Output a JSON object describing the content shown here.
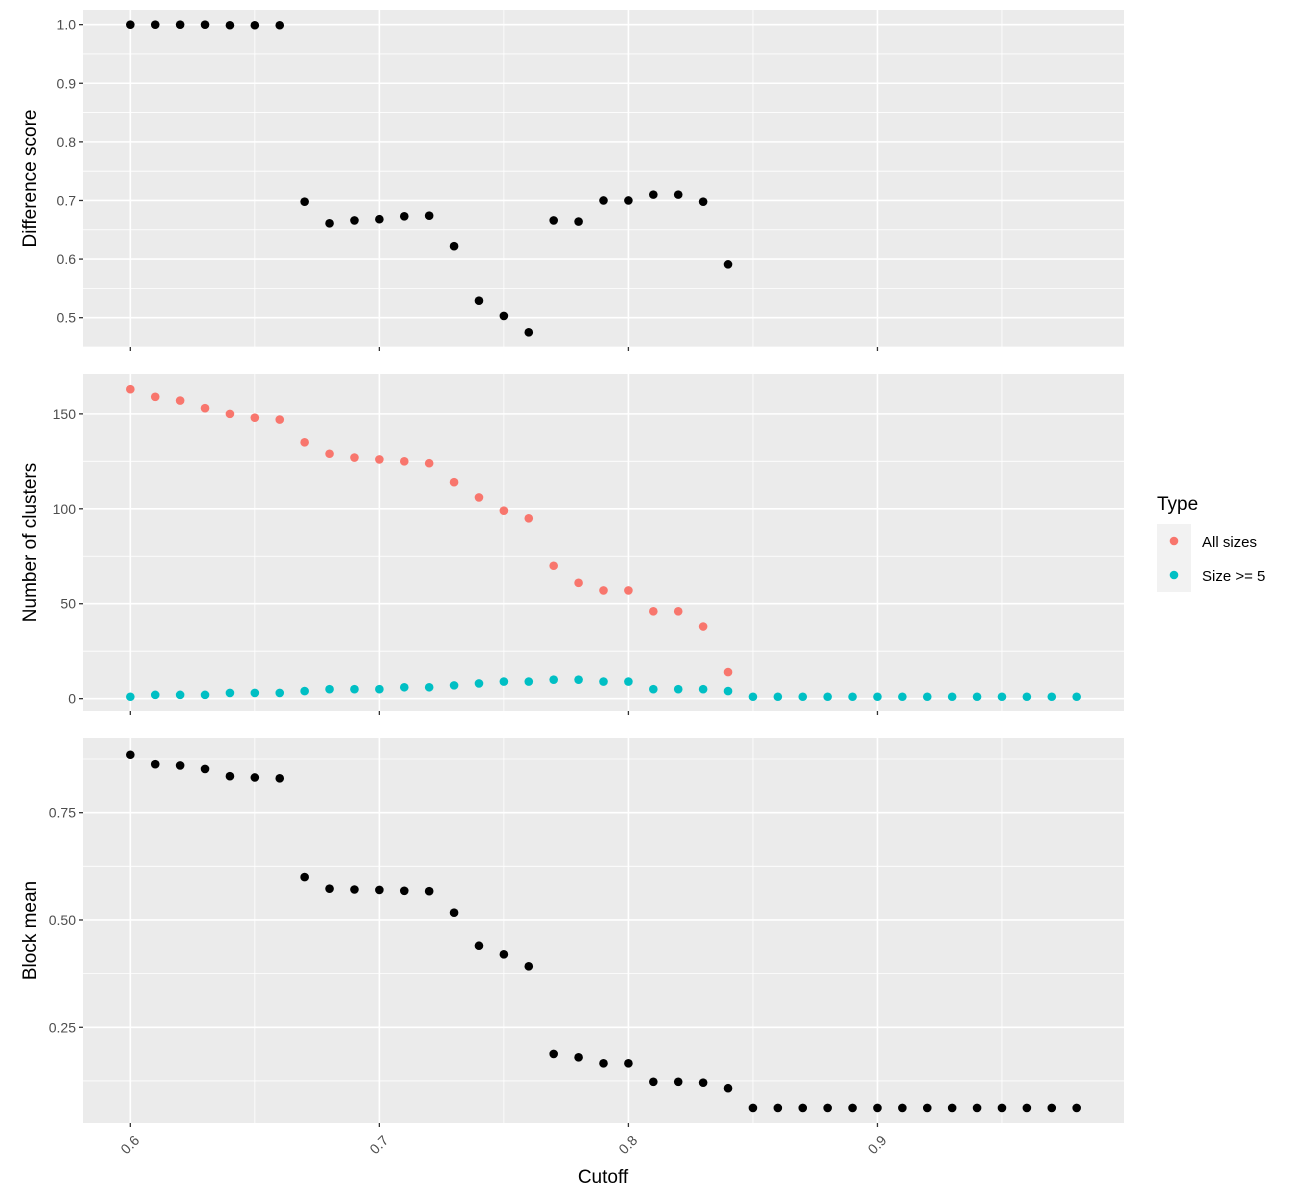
{
  "x_title": "Cutoff",
  "legend": {
    "title": "Type",
    "items": [
      {
        "label": "All sizes",
        "color": "#F8766D"
      },
      {
        "label": "Size >= 5",
        "color": "#00BFC4"
      }
    ]
  },
  "chart_data": [
    {
      "type": "scatter",
      "ylabel": "Difference score",
      "xlim": [
        0.581,
        0.999
      ],
      "ylim": [
        0.45,
        1.025
      ],
      "x_ticks": [
        0.6,
        0.7,
        0.8,
        0.9
      ],
      "x_tick_labels": [
        "0.6",
        "0.7",
        "0.8",
        "0.9"
      ],
      "y_ticks": [
        0.5,
        0.6,
        0.7,
        0.8,
        0.9,
        1.0
      ],
      "y_tick_labels": [
        "0.5",
        "0.6",
        "0.7",
        "0.8",
        "0.9",
        "1.0"
      ],
      "grid": true,
      "series": [
        {
          "color": "#000000",
          "x": [
            0.6,
            0.61,
            0.62,
            0.63,
            0.64,
            0.65,
            0.66,
            0.67,
            0.68,
            0.69,
            0.7,
            0.71,
            0.72,
            0.73,
            0.74,
            0.75,
            0.76,
            0.77,
            0.78,
            0.79,
            0.8,
            0.81,
            0.82,
            0.83,
            0.84
          ],
          "y": [
            1.0,
            1.0,
            1.0,
            1.0,
            0.999,
            0.999,
            0.999,
            0.698,
            0.661,
            0.666,
            0.668,
            0.673,
            0.674,
            0.622,
            0.529,
            0.503,
            0.475,
            0.666,
            0.664,
            0.7,
            0.7,
            0.71,
            0.71,
            0.698,
            0.591
          ]
        }
      ]
    },
    {
      "type": "scatter",
      "ylabel": "Number of clusters",
      "xlim": [
        0.581,
        0.999
      ],
      "ylim": [
        -6.5,
        171
      ],
      "x_ticks": [
        0.6,
        0.7,
        0.8,
        0.9
      ],
      "x_tick_labels": [
        "0.6",
        "0.7",
        "0.8",
        "0.9"
      ],
      "y_ticks": [
        0,
        50,
        100,
        150
      ],
      "y_tick_labels": [
        "0",
        "50",
        "100",
        "150"
      ],
      "grid": true,
      "legend_position": "right",
      "series": [
        {
          "name": "All sizes",
          "color": "#F8766D",
          "x": [
            0.6,
            0.61,
            0.62,
            0.63,
            0.64,
            0.65,
            0.66,
            0.67,
            0.68,
            0.69,
            0.7,
            0.71,
            0.72,
            0.73,
            0.74,
            0.75,
            0.76,
            0.77,
            0.78,
            0.79,
            0.8,
            0.81,
            0.82,
            0.83,
            0.84
          ],
          "y": [
            163,
            159,
            157,
            153,
            150,
            148,
            147,
            135,
            129,
            127,
            126,
            125,
            124,
            114,
            106,
            99,
            95,
            70,
            61,
            57,
            57,
            46,
            46,
            38,
            14
          ]
        },
        {
          "name": "Size >= 5",
          "color": "#00BFC4",
          "x": [
            0.6,
            0.61,
            0.62,
            0.63,
            0.64,
            0.65,
            0.66,
            0.67,
            0.68,
            0.69,
            0.7,
            0.71,
            0.72,
            0.73,
            0.74,
            0.75,
            0.76,
            0.77,
            0.78,
            0.79,
            0.8,
            0.81,
            0.82,
            0.83,
            0.84,
            0.85,
            0.86,
            0.87,
            0.88,
            0.89,
            0.9,
            0.91,
            0.92,
            0.93,
            0.94,
            0.95,
            0.96,
            0.97,
            0.98
          ],
          "y": [
            1,
            2,
            2,
            2,
            3,
            3,
            3,
            4,
            5,
            5,
            5,
            6,
            6,
            7,
            8,
            9,
            9,
            10,
            10,
            9,
            9,
            5,
            5,
            5,
            4,
            1,
            1,
            1,
            1,
            1,
            1,
            1,
            1,
            1,
            1,
            1,
            1,
            1,
            1
          ]
        }
      ]
    },
    {
      "type": "scatter",
      "ylabel": "Block mean",
      "xlim": [
        0.581,
        0.999
      ],
      "ylim": [
        0.027,
        0.924
      ],
      "x_ticks": [
        0.6,
        0.7,
        0.8,
        0.9
      ],
      "x_tick_labels": [
        "0.6",
        "0.7",
        "0.8",
        "0.9"
      ],
      "y_ticks": [
        0.25,
        0.5,
        0.75
      ],
      "y_tick_labels": [
        "0.25",
        "0.50",
        "0.75"
      ],
      "grid": true,
      "series": [
        {
          "color": "#000000",
          "x": [
            0.6,
            0.61,
            0.62,
            0.63,
            0.64,
            0.65,
            0.66,
            0.67,
            0.68,
            0.69,
            0.7,
            0.71,
            0.72,
            0.73,
            0.74,
            0.75,
            0.76,
            0.77,
            0.78,
            0.79,
            0.8,
            0.81,
            0.82,
            0.83,
            0.84,
            0.85,
            0.86,
            0.87,
            0.88,
            0.89,
            0.9,
            0.91,
            0.92,
            0.93,
            0.94,
            0.95,
            0.96,
            0.97,
            0.98
          ],
          "y": [
            0.885,
            0.863,
            0.86,
            0.852,
            0.835,
            0.832,
            0.83,
            0.6,
            0.573,
            0.571,
            0.57,
            0.568,
            0.567,
            0.517,
            0.44,
            0.42,
            0.392,
            0.188,
            0.18,
            0.166,
            0.166,
            0.123,
            0.123,
            0.121,
            0.108,
            0.062,
            0.062,
            0.062,
            0.062,
            0.062,
            0.062,
            0.062,
            0.062,
            0.062,
            0.062,
            0.062,
            0.062,
            0.062,
            0.062
          ]
        }
      ]
    }
  ]
}
